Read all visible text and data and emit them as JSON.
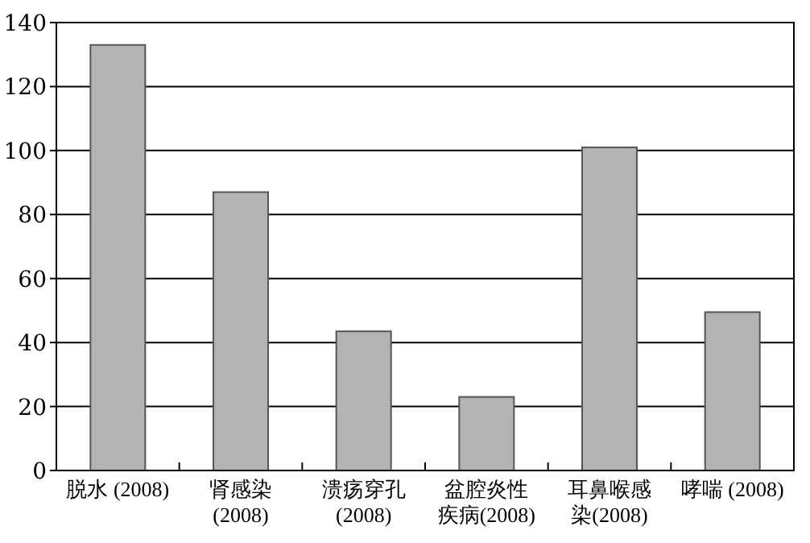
{
  "chart_data": {
    "type": "bar",
    "categories": [
      "脱水 (2008)",
      "肾感染 (2008)",
      "溃疡穿孔 (2008)",
      "盆腔炎性疾病(2008)",
      "耳鼻喉感染(2008)",
      "哮喘 (2008)"
    ],
    "values": [
      133,
      87,
      43.5,
      23,
      101,
      49.5
    ],
    "color": "#b3b3b3",
    "ylim": [
      0,
      140
    ],
    "yticks": [
      0,
      20,
      40,
      60,
      80,
      100,
      120,
      140
    ],
    "grid": "y"
  }
}
